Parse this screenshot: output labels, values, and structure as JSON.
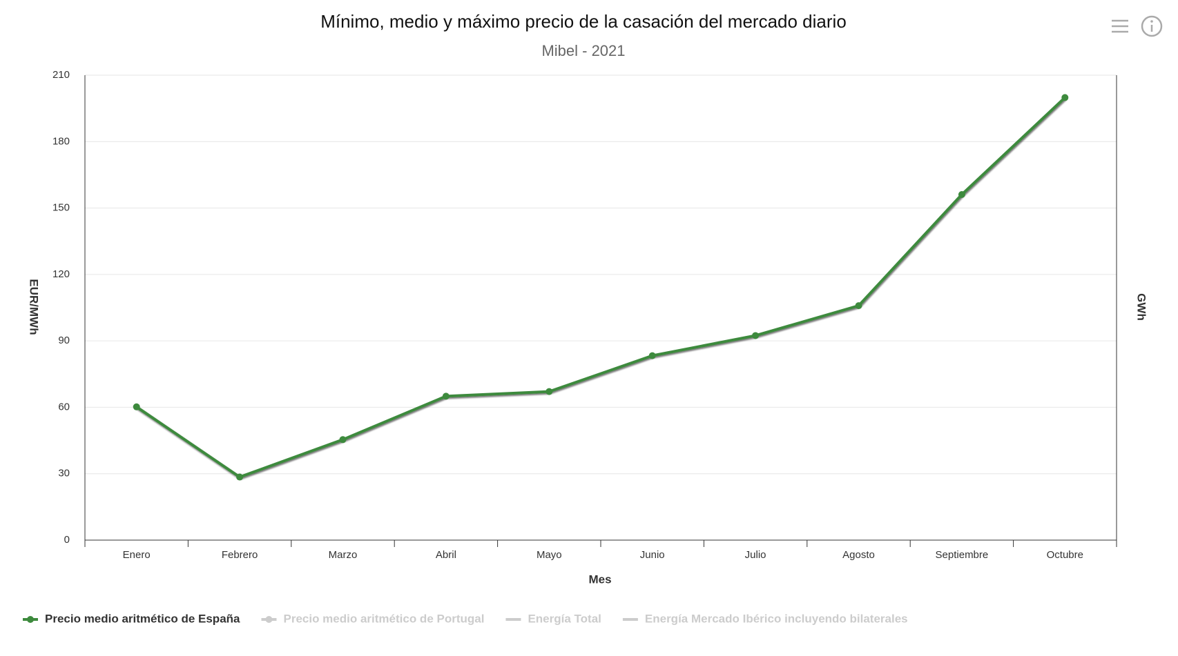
{
  "chart_data": {
    "type": "line",
    "title": "Mínimo, medio y máximo precio de la casación del mercado diario",
    "subtitle": "Mibel - 2021",
    "x_label": "Mes",
    "y_label": "EUR/MWh",
    "y2_label": "GWh",
    "categories": [
      "Enero",
      "Febrero",
      "Marzo",
      "Abril",
      "Mayo",
      "Junio",
      "Julio",
      "Agosto",
      "Septiembre",
      "Octubre"
    ],
    "series": [
      {
        "name": "Precio medio aritmético de España",
        "color": "#3d8a3d",
        "visible": true,
        "values": [
          60.2,
          28.5,
          45.4,
          65.0,
          67.1,
          83.3,
          92.4,
          105.9,
          156.1,
          199.9
        ]
      },
      {
        "name": "Precio medio aritmético de Portugal",
        "color": "#cccccc",
        "visible": false
      },
      {
        "name": "Energía Total",
        "color": "#cccccc",
        "visible": false
      },
      {
        "name": "Energía Mercado Ibérico incluyendo bilaterales",
        "color": "#cccccc",
        "visible": false
      }
    ],
    "ylim": [
      0,
      210
    ],
    "yticks": [
      0,
      30,
      60,
      90,
      120,
      150,
      180,
      210
    ],
    "grid": true
  }
}
